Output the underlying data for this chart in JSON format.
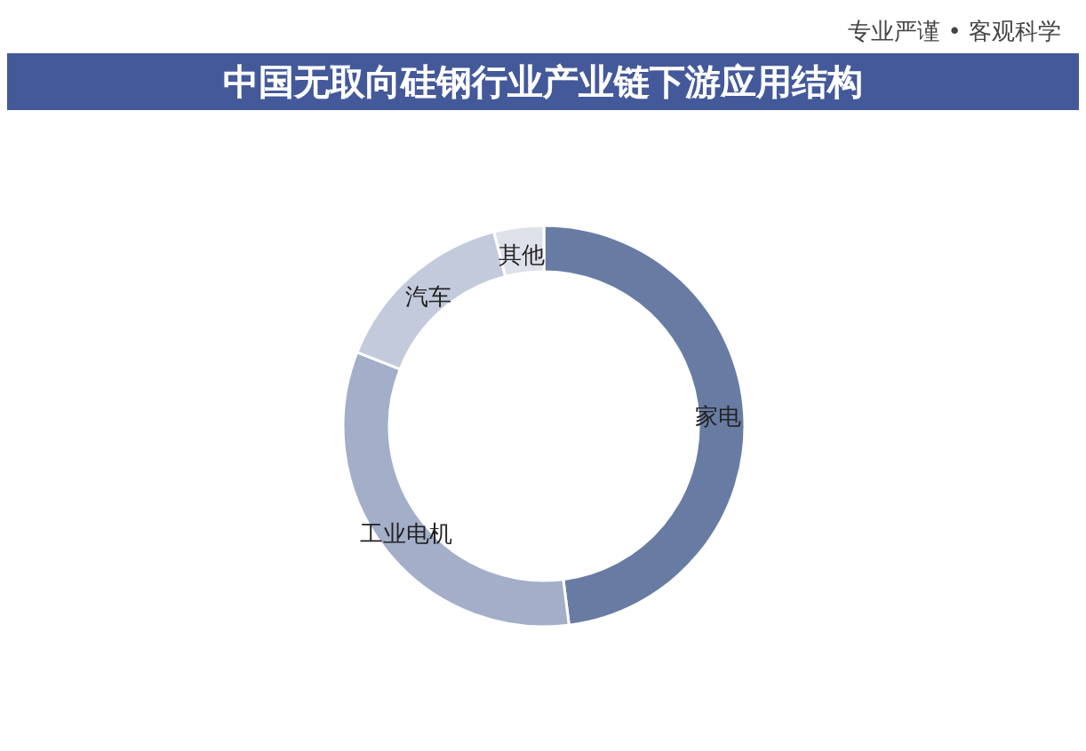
{
  "chart_data": {
    "type": "donut",
    "title": "中国无取向硅钢行业产业链下游应用结构",
    "categories": [
      "家电",
      "工业电机",
      "汽车",
      "其他"
    ],
    "values": [
      48,
      33,
      15,
      4
    ],
    "colors": [
      "#687ca3",
      "#a3aec8",
      "#c3cadb",
      "#dde1ea"
    ],
    "annotations": [
      "专业严谨 • 客观科学"
    ]
  }
}
